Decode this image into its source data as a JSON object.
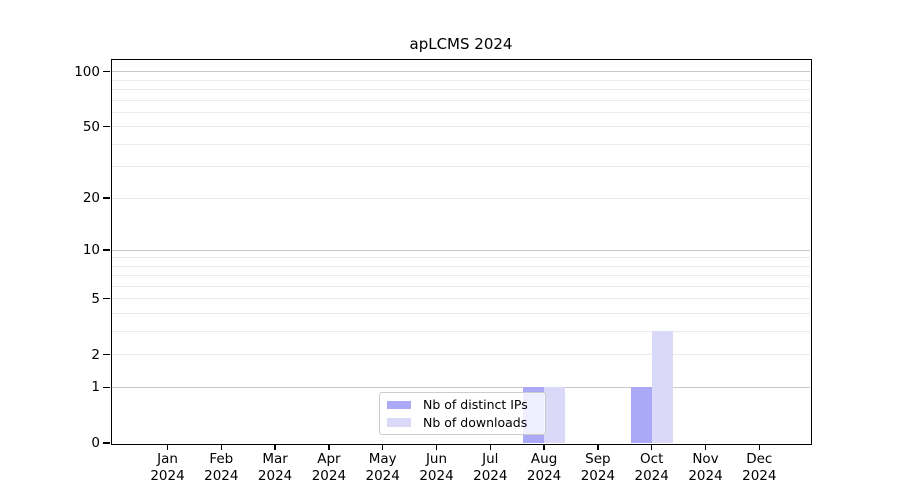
{
  "chart_data": {
    "type": "bar",
    "title": "apLCMS 2024",
    "year": "2024",
    "month_labels": [
      "Jan",
      "Feb",
      "Mar",
      "Apr",
      "May",
      "Jun",
      "Jul",
      "Aug",
      "Sep",
      "Oct",
      "Nov",
      "Dec"
    ],
    "categories": [
      "Jan 2024",
      "Feb 2024",
      "Mar 2024",
      "Apr 2024",
      "May 2024",
      "Jun 2024",
      "Jul 2024",
      "Aug 2024",
      "Sep 2024",
      "Oct 2024",
      "Nov 2024",
      "Dec 2024"
    ],
    "series": [
      {
        "name": "Nb of distinct IPs",
        "color": "#a9a9f7",
        "values": [
          0,
          0,
          0,
          0,
          0,
          0,
          0,
          1,
          0,
          1,
          0,
          0
        ]
      },
      {
        "name": "Nb of downloads",
        "color": "#dadaf8",
        "values": [
          0,
          0,
          0,
          0,
          0,
          0,
          0,
          1,
          0,
          3,
          0,
          0
        ]
      }
    ],
    "yscale": "log1p",
    "ylim": [
      0,
      115
    ],
    "y_ticks": [
      0,
      1,
      2,
      5,
      10,
      20,
      50,
      100
    ],
    "grid_major": [
      1,
      10,
      100
    ],
    "grid_minor": [
      2,
      3,
      4,
      5,
      6,
      7,
      8,
      9,
      20,
      30,
      40,
      50,
      60,
      70,
      80,
      90
    ],
    "legend_position": "lower center",
    "grid": "horizontal"
  },
  "colors": {
    "axis": "#000000",
    "grid_major": "#c8c8c8",
    "grid_minor": "#ebebeb",
    "background": "#ffffff",
    "legend_border": "#cccccc"
  }
}
